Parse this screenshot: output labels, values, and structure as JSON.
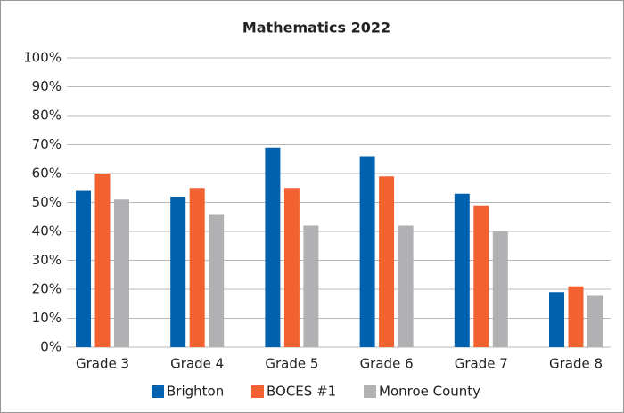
{
  "chart_data": {
    "type": "bar",
    "title": "Mathematics 2022",
    "categories": [
      "Grade 3",
      "Grade 4",
      "Grade 5",
      "Grade 6",
      "Grade 7",
      "Grade 8"
    ],
    "series": [
      {
        "name": "Brighton",
        "color": "#0062ae",
        "values": [
          54,
          52,
          69,
          66,
          53,
          19
        ]
      },
      {
        "name": "BOCES #1",
        "color": "#f26130",
        "values": [
          60,
          55,
          55,
          59,
          49,
          21
        ]
      },
      {
        "name": "Monroe County",
        "color": "#b1b1b3",
        "values": [
          51,
          46,
          42,
          42,
          40,
          18
        ]
      }
    ],
    "ylim": [
      0,
      100
    ],
    "yticks": [
      {
        "value": 0,
        "label": "0%"
      },
      {
        "value": 10,
        "label": "10%"
      },
      {
        "value": 20,
        "label": "20%"
      },
      {
        "value": 30,
        "label": "30%"
      },
      {
        "value": 40,
        "label": "40%"
      },
      {
        "value": 50,
        "label": "50%"
      },
      {
        "value": 60,
        "label": "60%"
      },
      {
        "value": 70,
        "label": "70%"
      },
      {
        "value": 80,
        "label": "80%"
      },
      {
        "value": 90,
        "label": "90%"
      },
      {
        "value": 100,
        "label": "100%"
      }
    ],
    "grid": true,
    "legend": "bottom"
  }
}
